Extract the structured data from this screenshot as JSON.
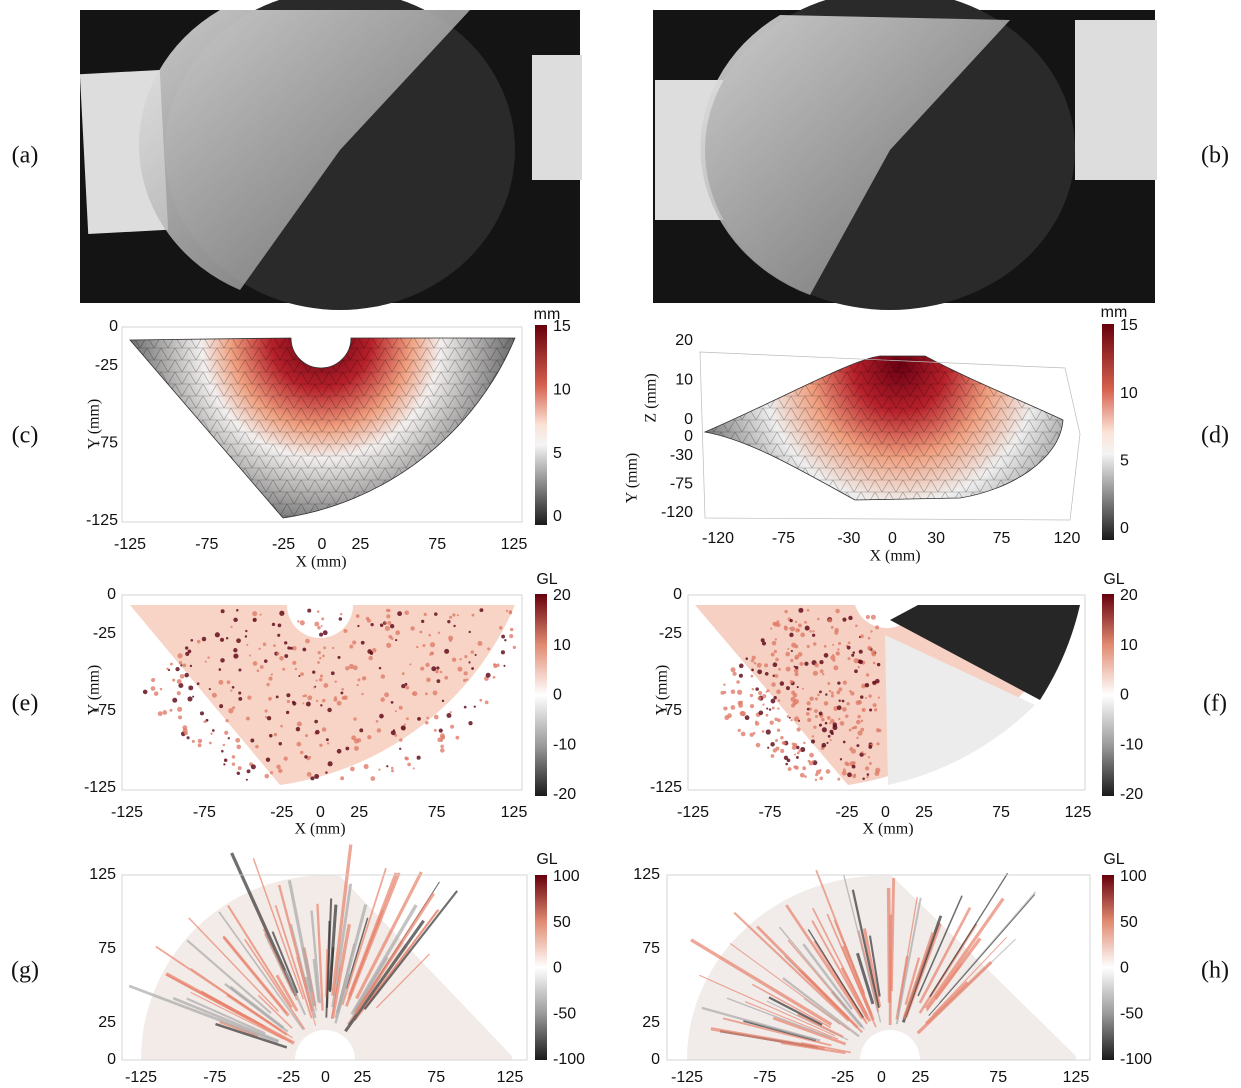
{
  "panels": [
    {
      "label": "(a)"
    },
    {
      "label": "(b)"
    },
    {
      "label": "(c)",
      "x_label": "X (mm)",
      "y_label": "Y (mm)",
      "x_ticks": [
        -125,
        -75,
        -25,
        0,
        25,
        75,
        125
      ],
      "y_ticks": [
        0,
        -25,
        -75,
        -125
      ],
      "colorbar_unit": "mm",
      "colorbar_ticks": [
        15,
        10,
        5,
        0
      ]
    },
    {
      "label": "(d)",
      "x_label": "X (mm)",
      "y_label": "Y (mm)",
      "z_label": "Z (mm)",
      "x_ticks": [
        -120,
        -75,
        -30,
        0,
        30,
        75,
        120
      ],
      "y_ticks": [
        0,
        -30,
        -75,
        -120
      ],
      "z_ticks": [
        20,
        10,
        0
      ],
      "colorbar_unit": "mm",
      "colorbar_ticks": [
        15,
        10,
        5,
        0
      ]
    },
    {
      "label": "(e)",
      "x_label": "X (mm)",
      "y_label": "Y (mm)",
      "x_ticks": [
        -125,
        -75,
        -25,
        0,
        25,
        75,
        125
      ],
      "y_ticks": [
        0,
        -25,
        -75,
        -125
      ],
      "colorbar_unit": "GL",
      "colorbar_ticks": [
        20,
        10,
        0,
        -10,
        -20
      ]
    },
    {
      "label": "(f)",
      "x_label": "X (mm)",
      "y_label": "Y (mm)",
      "x_ticks": [
        -125,
        -75,
        -25,
        0,
        25,
        75,
        125
      ],
      "y_ticks": [
        0,
        -25,
        -75,
        -125
      ],
      "colorbar_unit": "GL",
      "colorbar_ticks": [
        20,
        10,
        0,
        -10,
        -20
      ]
    },
    {
      "label": "(g)",
      "x_ticks": [
        -125,
        -75,
        -25,
        0,
        25,
        75,
        125
      ],
      "y_ticks": [
        125,
        75,
        25,
        0
      ],
      "colorbar_unit": "GL",
      "colorbar_ticks": [
        100,
        50,
        0,
        -50,
        -100
      ]
    },
    {
      "label": "(h)",
      "x_ticks": [
        -125,
        -75,
        -25,
        0,
        25,
        75,
        125
      ],
      "y_ticks": [
        125,
        75,
        25,
        0
      ],
      "colorbar_unit": "GL",
      "colorbar_ticks": [
        100,
        50,
        0,
        -50,
        -100
      ]
    }
  ]
}
